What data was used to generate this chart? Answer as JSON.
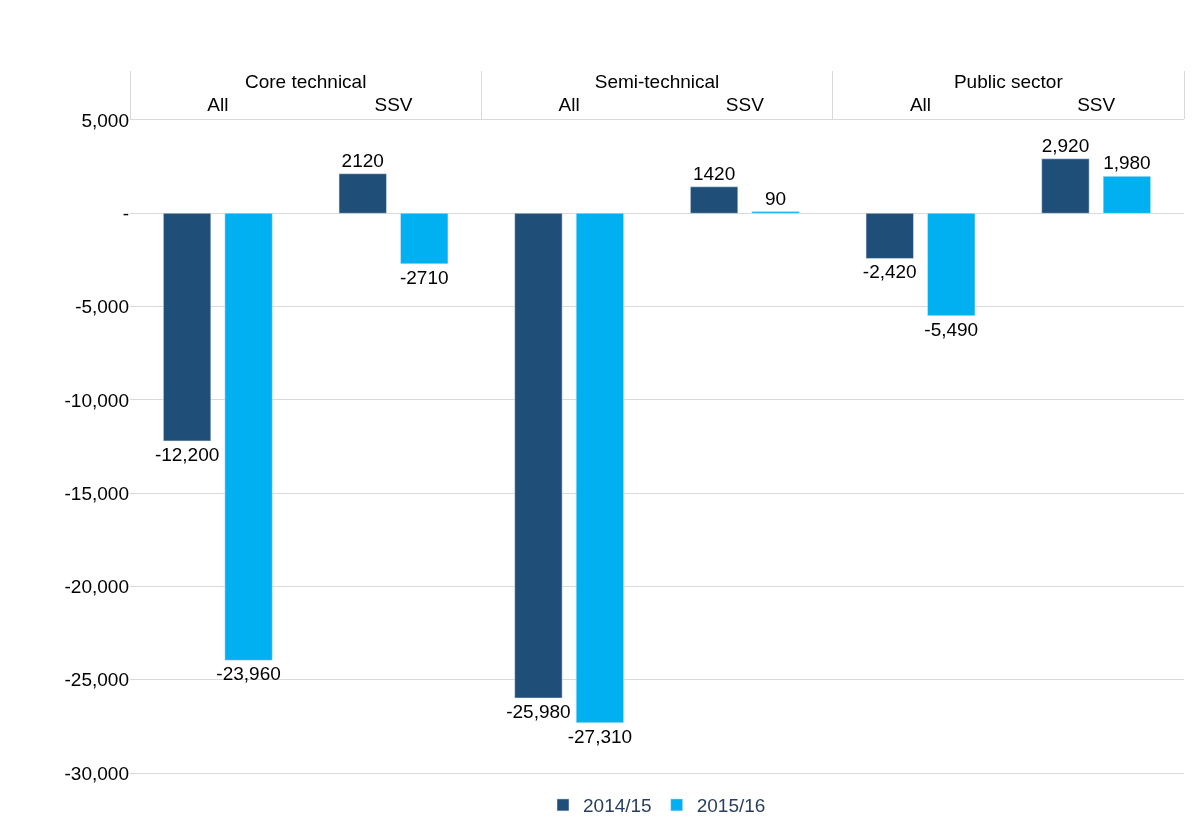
{
  "chart_data": {
    "type": "bar",
    "categories": [
      "All",
      "SSV",
      "All",
      "SSV",
      "All",
      "SSV"
    ],
    "series": [
      {
        "name": "2014/15",
        "color": "#1f4e79",
        "values": [
          -12200,
          2120,
          -25980,
          1420,
          -2420,
          2920
        ],
        "value_labels": [
          "-12,200",
          "2120",
          "-25,980",
          "1420",
          "-2,420",
          "2,920"
        ]
      },
      {
        "name": "2015/16",
        "color": "#00b0f0",
        "values": [
          -23960,
          -2710,
          -27310,
          90,
          -5490,
          1980
        ],
        "value_labels": [
          "-23,960",
          "-2710",
          "-27,310",
          "90",
          "-5,490",
          "1,980"
        ]
      }
    ],
    "annotations": [
      "Core technical",
      "Semi-technical",
      "Public sector"
    ],
    "ylim": [
      -30000,
      5000
    ],
    "yticks": [
      {
        "value": 5000,
        "label": "5,000"
      },
      {
        "value": 0,
        "label": "-"
      },
      {
        "value": -5000,
        "label": "-5,000"
      },
      {
        "value": -10000,
        "label": "-10,000"
      },
      {
        "value": -15000,
        "label": "-15,000"
      },
      {
        "value": -20000,
        "label": "-20,000"
      },
      {
        "value": -25000,
        "label": "-25,000"
      },
      {
        "value": -30000,
        "label": "-30,000"
      }
    ],
    "grid": "y",
    "legend": "bottom"
  }
}
